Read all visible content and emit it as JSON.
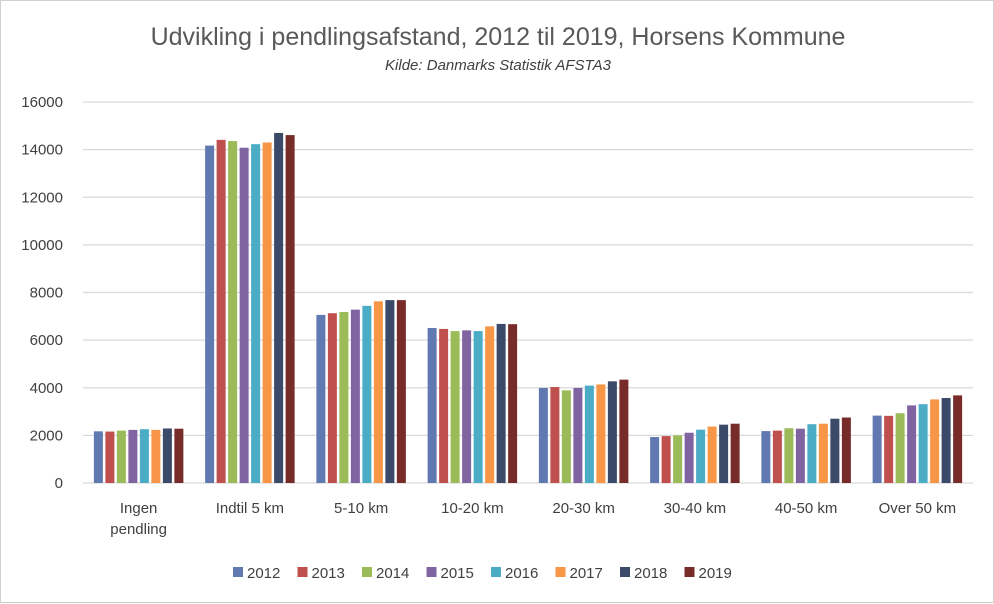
{
  "chart_data": {
    "type": "bar",
    "title": "Udvikling i pendlingsafstand, 2012 til 2019, Horsens Kommune",
    "subtitle": "Kilde: Danmarks Statistik AFSTA3",
    "xlabel": "",
    "ylabel": "",
    "ylim": [
      0,
      16000
    ],
    "yticks": [
      0,
      2000,
      4000,
      6000,
      8000,
      10000,
      12000,
      14000,
      16000
    ],
    "grid": true,
    "legend_position": "bottom",
    "categories": [
      [
        "Ingen",
        "pendling"
      ],
      [
        "Indtil 5 km"
      ],
      [
        "5-10 km"
      ],
      [
        "10-20 km"
      ],
      [
        "20-30 km"
      ],
      [
        "30-40 km"
      ],
      [
        "40-50 km"
      ],
      [
        "Over 50 km"
      ]
    ],
    "series": [
      {
        "name": "2012",
        "color": "#6079b0",
        "values": [
          2170,
          14170,
          7060,
          6510,
          3990,
          1930,
          2180,
          2830
        ]
      },
      {
        "name": "2013",
        "color": "#c0504d",
        "values": [
          2160,
          14410,
          7130,
          6470,
          4030,
          1970,
          2200,
          2820
        ]
      },
      {
        "name": "2014",
        "color": "#9bbb59",
        "values": [
          2200,
          14360,
          7180,
          6380,
          3890,
          2000,
          2300,
          2930
        ]
      },
      {
        "name": "2015",
        "color": "#8064a2",
        "values": [
          2230,
          14080,
          7280,
          6410,
          3990,
          2110,
          2280,
          3260
        ]
      },
      {
        "name": "2016",
        "color": "#4bacc6",
        "values": [
          2260,
          14230,
          7440,
          6380,
          4090,
          2240,
          2470,
          3310
        ]
      },
      {
        "name": "2017",
        "color": "#f79646",
        "values": [
          2230,
          14300,
          7630,
          6580,
          4140,
          2370,
          2490,
          3510
        ]
      },
      {
        "name": "2018",
        "color": "#3b4a68",
        "values": [
          2290,
          14700,
          7680,
          6680,
          4270,
          2450,
          2700,
          3570
        ]
      },
      {
        "name": "2019",
        "color": "#772c2a",
        "values": [
          2280,
          14610,
          7680,
          6670,
          4340,
          2490,
          2750,
          3680
        ]
      }
    ]
  }
}
